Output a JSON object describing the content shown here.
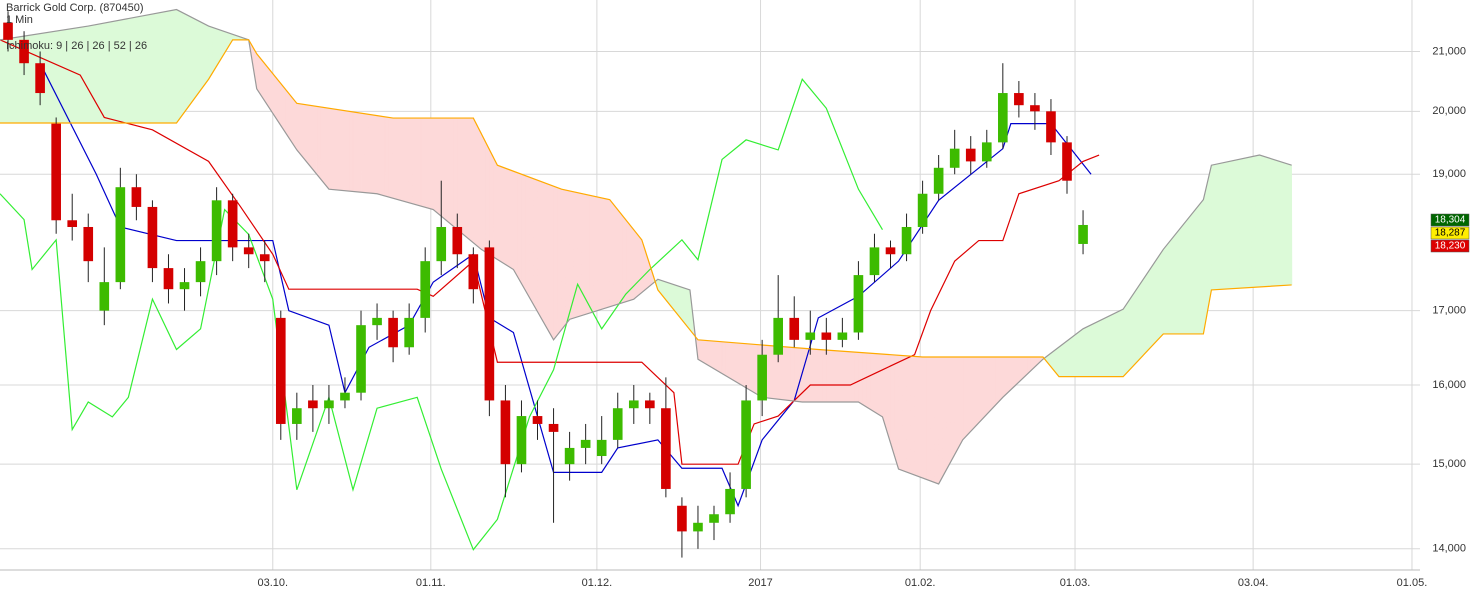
{
  "chart_data": {
    "type": "candlestick",
    "title": "Barrick Gold Corp. (870450)",
    "subtitle": "1 Min",
    "indicator": "Ichimoku: 9 | 26 | 26 | 52 | 26",
    "log_scale": true,
    "grid": true,
    "up_color": "#3dbb00",
    "down_color": "#d40000",
    "xlim": [
      -1,
      176
    ],
    "ylim": [
      13760,
      21900
    ],
    "xticks": [
      {
        "value": 33,
        "label": "03.10."
      },
      {
        "value": 52.7,
        "label": "01.11."
      },
      {
        "value": 73.4,
        "label": "01.12."
      },
      {
        "value": 93.8,
        "label": "2017"
      },
      {
        "value": 113.7,
        "label": "01.02."
      },
      {
        "value": 133,
        "label": "01.03."
      },
      {
        "value": 155.2,
        "label": "03.04."
      },
      {
        "value": 175,
        "label": "01.05."
      }
    ],
    "yticks": [
      {
        "value": 14000,
        "label": "14,000"
      },
      {
        "value": 15000,
        "label": "15,000"
      },
      {
        "value": 16000,
        "label": "16,000"
      },
      {
        "value": 17000,
        "label": "17,000"
      },
      {
        "value": 19000,
        "label": "19,000"
      },
      {
        "value": 20000,
        "label": "20,000"
      },
      {
        "value": 21000,
        "label": "21,000"
      }
    ],
    "x": [
      0,
      2,
      4,
      6,
      8,
      10,
      12,
      14,
      16,
      18,
      20,
      22,
      24,
      26,
      28,
      30,
      32,
      34,
      36,
      38,
      40,
      42,
      44,
      46,
      48,
      50,
      52,
      54,
      56,
      58,
      60,
      62,
      64,
      66,
      68,
      70,
      72,
      74,
      76,
      78,
      80,
      82,
      84,
      86,
      88,
      90,
      92,
      94,
      96,
      98,
      100,
      102,
      104,
      106,
      108,
      110,
      112,
      114,
      116,
      118,
      120,
      122,
      124,
      126,
      128,
      130,
      132,
      134
    ],
    "candles": [
      [
        21500,
        21700,
        21000,
        21200
      ],
      [
        21200,
        21350,
        20600,
        20800
      ],
      [
        20800,
        21000,
        20100,
        20300
      ],
      [
        19800,
        19900,
        18100,
        18300
      ],
      [
        18300,
        18700,
        18000,
        18200
      ],
      [
        18200,
        18400,
        17400,
        17700
      ],
      [
        17000,
        17900,
        16800,
        17400
      ],
      [
        17400,
        19100,
        17300,
        18800
      ],
      [
        18800,
        19000,
        18300,
        18500
      ],
      [
        18500,
        18600,
        17400,
        17600
      ],
      [
        17600,
        17800,
        17100,
        17300
      ],
      [
        17300,
        17600,
        17000,
        17400
      ],
      [
        17400,
        17900,
        17200,
        17700
      ],
      [
        17700,
        18800,
        17500,
        18600
      ],
      [
        18600,
        18700,
        17700,
        17900
      ],
      [
        17900,
        18100,
        17600,
        17800
      ],
      [
        17800,
        18000,
        17400,
        17700
      ],
      [
        16900,
        17000,
        15300,
        15500
      ],
      [
        15500,
        15900,
        15300,
        15700
      ],
      [
        15800,
        16000,
        15400,
        15700
      ],
      [
        15700,
        16000,
        15500,
        15800
      ],
      [
        15800,
        16100,
        15700,
        15900
      ],
      [
        15900,
        17000,
        15800,
        16800
      ],
      [
        16800,
        17100,
        16600,
        16900
      ],
      [
        16900,
        17000,
        16300,
        16500
      ],
      [
        16500,
        17100,
        16400,
        16900
      ],
      [
        16900,
        17900,
        16700,
        17700
      ],
      [
        17700,
        18900,
        17500,
        18200
      ],
      [
        18200,
        18400,
        17600,
        17800
      ],
      [
        17800,
        17900,
        17100,
        17300
      ],
      [
        17900,
        18000,
        15600,
        15800
      ],
      [
        15800,
        16000,
        14600,
        15000
      ],
      [
        15000,
        15800,
        14900,
        15600
      ],
      [
        15600,
        15800,
        15300,
        15500
      ],
      [
        15500,
        15700,
        14300,
        15400
      ],
      [
        15000,
        15400,
        14800,
        15200
      ],
      [
        15200,
        15500,
        15000,
        15300
      ],
      [
        15100,
        15600,
        15000,
        15300
      ],
      [
        15300,
        15900,
        15200,
        15700
      ],
      [
        15700,
        16000,
        15500,
        15800
      ],
      [
        15800,
        15900,
        15500,
        15700
      ],
      [
        15700,
        16100,
        14600,
        14700
      ],
      [
        14500,
        14600,
        13900,
        14200
      ],
      [
        14200,
        14500,
        14000,
        14300
      ],
      [
        14300,
        14500,
        14100,
        14400
      ],
      [
        14400,
        14900,
        14300,
        14700
      ],
      [
        14700,
        16000,
        14600,
        15800
      ],
      [
        15800,
        16600,
        15600,
        16400
      ],
      [
        16400,
        17500,
        16300,
        16900
      ],
      [
        16900,
        17200,
        16500,
        16600
      ],
      [
        16600,
        17000,
        16400,
        16700
      ],
      [
        16700,
        16900,
        16400,
        16600
      ],
      [
        16600,
        16900,
        16500,
        16700
      ],
      [
        16700,
        17700,
        16600,
        17500
      ],
      [
        17500,
        18100,
        17400,
        17900
      ],
      [
        17900,
        18000,
        17600,
        17800
      ],
      [
        17800,
        18400,
        17700,
        18200
      ],
      [
        18200,
        18900,
        18100,
        18700
      ],
      [
        18700,
        19300,
        18600,
        19100
      ],
      [
        19100,
        19700,
        19000,
        19400
      ],
      [
        19400,
        19600,
        19000,
        19200
      ],
      [
        19200,
        19700,
        19100,
        19500
      ],
      [
        19500,
        20800,
        19400,
        20300
      ],
      [
        20300,
        20500,
        19900,
        20100
      ],
      [
        20100,
        20300,
        19700,
        20000
      ],
      [
        20000,
        20200,
        19300,
        19500
      ],
      [
        19500,
        19600,
        18700,
        18900
      ],
      [
        17950,
        18450,
        17800,
        18230
      ]
    ],
    "lines": [
      {
        "color": "#0000cc",
        "x": [
          4,
          11,
          14,
          21,
          29,
          33,
          35,
          40,
          42,
          45,
          50,
          53,
          58,
          60,
          63,
          68,
          74,
          76,
          81,
          84,
          89,
          91,
          94,
          98,
          101,
          106,
          111,
          116,
          124,
          125,
          130,
          135
        ],
        "values": [
          20800,
          19000,
          18200,
          18000,
          18000,
          18000,
          17000,
          16800,
          15900,
          16500,
          16800,
          17400,
          17800,
          16900,
          16700,
          14900,
          14900,
          15200,
          15300,
          14950,
          14950,
          14500,
          15300,
          15800,
          16900,
          17200,
          17700,
          18600,
          19400,
          19800,
          19800,
          19000
        ]
      },
      {
        "color": "#dd0000",
        "x": [
          -1,
          9,
          12,
          18,
          25,
          29,
          33,
          35,
          51,
          53,
          58,
          61,
          79,
          83,
          84,
          91,
          93,
          96,
          100,
          105,
          109,
          113,
          115,
          118,
          121,
          124,
          126,
          131,
          134,
          136
        ],
        "values": [
          21200,
          20600,
          19900,
          19700,
          19200,
          18500,
          17800,
          17300,
          17300,
          17200,
          17700,
          16300,
          16300,
          15900,
          15000,
          15000,
          15500,
          15600,
          16000,
          16000,
          16200,
          16400,
          17000,
          17700,
          18000,
          18000,
          18700,
          18900,
          19200,
          19300
        ]
      },
      {
        "color": "#33ee33",
        "x": [
          -1,
          2,
          3,
          6,
          8,
          10,
          13,
          15,
          18,
          21,
          24,
          27,
          30,
          33,
          36,
          40,
          43,
          46,
          51,
          54,
          58,
          61,
          65,
          68,
          71,
          74,
          77,
          80,
          84,
          86,
          89,
          92,
          96,
          99,
          102,
          106,
          109
        ],
        "values": [
          18700,
          18310,
          17580,
          18010,
          15430,
          15780,
          15590,
          15840,
          17160,
          16470,
          16750,
          18460,
          18090,
          17160,
          14690,
          15840,
          14690,
          15700,
          15840,
          14940,
          13990,
          14340,
          15590,
          16200,
          17370,
          16750,
          17230,
          17580,
          18010,
          17720,
          19230,
          19540,
          19380,
          20530,
          20050,
          18770,
          18160
        ]
      },
      {
        "color": "#999999",
        "x": [
          -1,
          10,
          21,
          25,
          30,
          31,
          36,
          40,
          46,
          53,
          59,
          63,
          68,
          70,
          78,
          81,
          85,
          86,
          94,
          99,
          106,
          109,
          111,
          116,
          119,
          124,
          129,
          134,
          139,
          144,
          149,
          150,
          156,
          160
        ],
        "values": [
          21200,
          21440,
          21730,
          21440,
          21200,
          20370,
          19380,
          18770,
          18700,
          18460,
          17870,
          17580,
          16600,
          16880,
          17160,
          17440,
          17290,
          16340,
          15840,
          15780,
          15780,
          15590,
          14940,
          14760,
          15300,
          15840,
          16340,
          16750,
          17020,
          17870,
          18610,
          19140,
          19300,
          19140
        ]
      },
      {
        "color": "#ffaa00",
        "x": [
          -1,
          21,
          25,
          28,
          30,
          31,
          36,
          48,
          58,
          61,
          69,
          75,
          79,
          81,
          86,
          101,
          114,
          129,
          131,
          139,
          144,
          149,
          150,
          160
        ],
        "values": [
          19810,
          19810,
          20530,
          21200,
          21200,
          20960,
          20130,
          19890,
          19890,
          19140,
          18770,
          18610,
          18010,
          17290,
          16600,
          16470,
          16370,
          16370,
          16110,
          16110,
          16680,
          16680,
          17290,
          17360
        ]
      }
    ],
    "cloud_colors": [
      "#dcfad8",
      "#fdd9d9"
    ],
    "last_values": [
      18304,
      18287,
      18230
    ],
    "last_value_labels": [
      "18,304",
      "18,287",
      "18,230"
    ],
    "last_value_colors": [
      "#006600",
      "#ffee00",
      "#dd0000"
    ],
    "last_value_text_colors": [
      "#ffffff",
      "#000000",
      "#ffffff"
    ]
  }
}
